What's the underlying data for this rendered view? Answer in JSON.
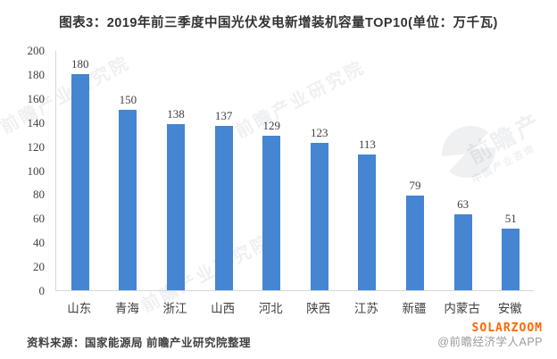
{
  "title": "图表3：2019年前三季度中国光伏发电新增装机容量TOP10(单位：万千瓦)",
  "chart_data": {
    "type": "bar",
    "categories": [
      "山东",
      "青海",
      "浙江",
      "山西",
      "河北",
      "陕西",
      "江苏",
      "新疆",
      "内蒙古",
      "安徽"
    ],
    "values": [
      180,
      150,
      138,
      137,
      129,
      123,
      113,
      79,
      63,
      51
    ],
    "title": "2019年前三季度中国光伏发电新增装机容量TOP10",
    "unit": "万千瓦",
    "xlabel": "",
    "ylabel": "",
    "ylim": [
      0,
      200
    ],
    "ytick_step": 20,
    "grid": false,
    "legend": null,
    "bar_color": "#4585d1"
  },
  "footer": {
    "source": "资料来源：国家能源局 前瞻产业研究院整理",
    "brand": "SOLARZOOM",
    "credit": "@前瞻经济学人APP"
  },
  "watermark": {
    "texts": [
      "前瞻产业研究院",
      "前瞻产业研究院",
      "前瞻产业研究院",
      "前瞻产",
      "中国产业咨询"
    ]
  },
  "colors": {
    "bar": "#4585d1",
    "axis_line": "#d6d6d6",
    "text": "#404040",
    "title_text": "#333333",
    "brand_orange": "#ff6600",
    "credit_gray": "#9b9b9b"
  }
}
